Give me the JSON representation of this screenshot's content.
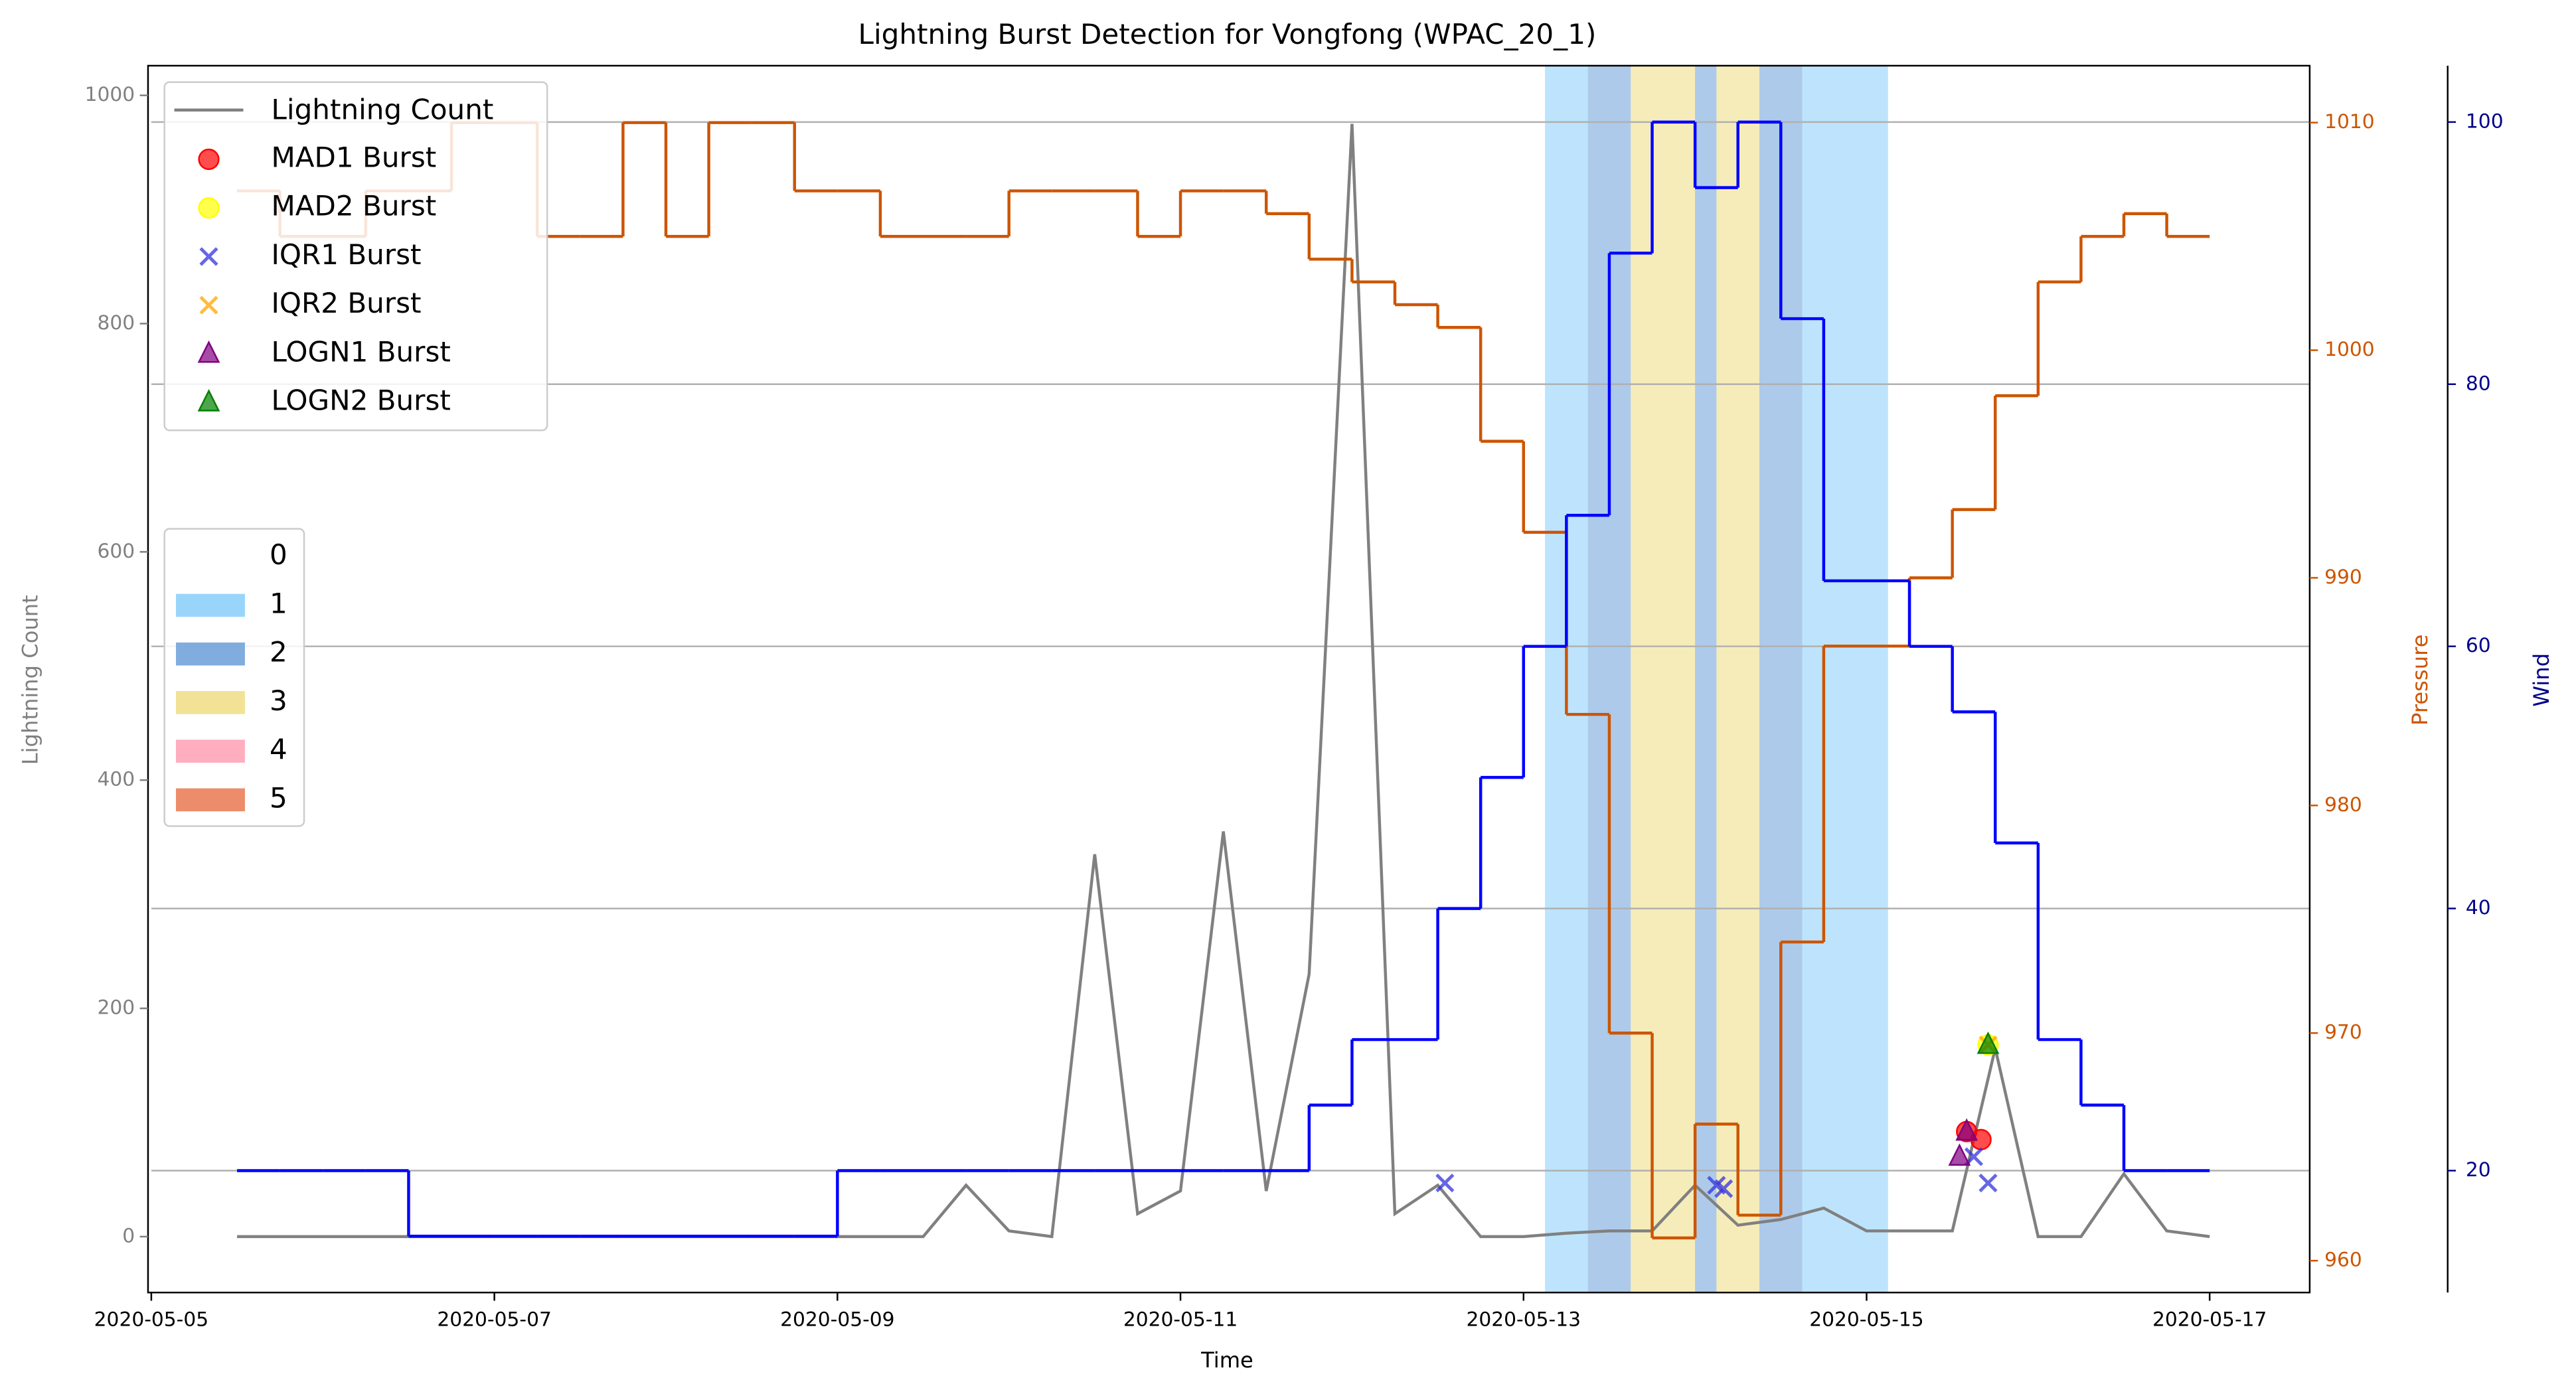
{
  "chart_data": {
    "type": "line",
    "title": "Lightning Burst Detection for Vongfong (WPAC_20_1)",
    "x_label": "Time",
    "y_label": "Lightning Count",
    "y2_label": "Pressure",
    "y3_label": "Wind",
    "x": [
      "2020-05-05 12:00",
      "2020-05-05 18:00",
      "2020-05-06 00:00",
      "2020-05-06 06:00",
      "2020-05-06 12:00",
      "2020-05-06 18:00",
      "2020-05-07 00:00",
      "2020-05-07 06:00",
      "2020-05-07 12:00",
      "2020-05-07 18:00",
      "2020-05-08 00:00",
      "2020-05-08 06:00",
      "2020-05-08 12:00",
      "2020-05-08 18:00",
      "2020-05-09 00:00",
      "2020-05-09 06:00",
      "2020-05-09 12:00",
      "2020-05-09 18:00",
      "2020-05-10 00:00",
      "2020-05-10 06:00",
      "2020-05-10 12:00",
      "2020-05-10 18:00",
      "2020-05-11 00:00",
      "2020-05-11 06:00",
      "2020-05-11 12:00",
      "2020-05-11 18:00",
      "2020-05-12 00:00",
      "2020-05-12 06:00",
      "2020-05-12 12:00",
      "2020-05-12 18:00",
      "2020-05-13 00:00",
      "2020-05-13 06:00",
      "2020-05-13 12:00",
      "2020-05-13 18:00",
      "2020-05-14 00:00",
      "2020-05-14 06:00",
      "2020-05-14 12:00",
      "2020-05-14 18:00",
      "2020-05-15 00:00",
      "2020-05-15 06:00",
      "2020-05-15 12:00",
      "2020-05-15 18:00",
      "2020-05-16 00:00",
      "2020-05-16 06:00",
      "2020-05-16 12:00",
      "2020-05-16 18:00",
      "2020-05-17 00:00"
    ],
    "xlim": [
      "2020-05-05 00:00",
      "2020-05-17 14:00"
    ],
    "xticks": [
      "2020-05-05",
      "2020-05-07",
      "2020-05-09",
      "2020-05-11",
      "2020-05-13",
      "2020-05-15",
      "2020-05-17"
    ],
    "ylim": [
      -49,
      1026
    ],
    "yticks": [
      0,
      200,
      400,
      600,
      800,
      1000
    ],
    "y2lim": [
      958.6,
      1012.5
    ],
    "y2ticks": [
      960,
      970,
      980,
      990,
      1000,
      1010
    ],
    "y3lim": [
      10.7,
      104.3
    ],
    "y3ticks": [
      20,
      40,
      60,
      80,
      100
    ],
    "grid": "y3",
    "series": [
      {
        "name": "Lightning Count",
        "color": "#808080",
        "axis": "y",
        "values": [
          0,
          0,
          0,
          0,
          0,
          0,
          0,
          0,
          0,
          0,
          0,
          0,
          0,
          0,
          0,
          0,
          0,
          45,
          5,
          0,
          335,
          20,
          40,
          355,
          40,
          230,
          975,
          20,
          45,
          0,
          0,
          3,
          5,
          5,
          45,
          10,
          15,
          25,
          5,
          5,
          5,
          165,
          0,
          0,
          55,
          5,
          0
        ]
      },
      {
        "color": "#cc5500",
        "axis": "y2",
        "drawstyle": "steps-post",
        "values": [
          1007,
          1005,
          1005,
          1007,
          1007,
          1010,
          1010,
          1005,
          1005,
          1010,
          1005,
          1010,
          1010,
          1007,
          1007,
          1005,
          1005,
          1005,
          1007,
          1007,
          1007,
          1005,
          1007,
          1007,
          1006,
          1004,
          1003,
          1002,
          1001,
          996,
          992,
          984,
          970,
          961,
          966,
          962,
          974,
          987,
          987,
          990,
          993,
          998,
          1003,
          1005,
          1006,
          1005,
          1005
        ]
      },
      {
        "color": "#0000ff",
        "axis": "y3",
        "drawstyle": "steps-post",
        "values": [
          20,
          20,
          20,
          20,
          15,
          15,
          15,
          15,
          15,
          15,
          15,
          15,
          15,
          15,
          20,
          20,
          20,
          20,
          20,
          20,
          20,
          20,
          20,
          20,
          20,
          25,
          30,
          30,
          40,
          50,
          60,
          70,
          90,
          100,
          95,
          100,
          85,
          65,
          65,
          60,
          55,
          45,
          30,
          25,
          20,
          20,
          20
        ]
      }
    ],
    "bursts": [
      {
        "name": "MAD1 Burst",
        "color": "#ff0000",
        "marker": "o",
        "x": [
          "2020-05-15 14:00",
          "2020-05-15 16:00"
        ],
        "values": [
          92,
          85
        ]
      },
      {
        "name": "MAD2 Burst",
        "color": "#ffff00",
        "marker": "o",
        "x": [
          "2020-05-15 17:00"
        ],
        "values": [
          168
        ]
      },
      {
        "name": "IQR1 Burst",
        "color": "#3333dd",
        "marker": "x",
        "x": [
          "2020-05-12 13:00",
          "2020-05-14 03:00",
          "2020-05-14 04:00",
          "2020-05-15 17:00",
          "2020-05-15 15:00"
        ],
        "values": [
          47,
          45,
          42,
          47,
          70
        ]
      },
      {
        "name": "IQR2 Burst",
        "color": "#ffa500",
        "marker": "x",
        "x": [
          "2020-05-15 17:00"
        ],
        "values": [
          168
        ]
      },
      {
        "name": "LOGN1 Burst",
        "color": "#800080",
        "marker": "^",
        "x": [
          "2020-05-15 13:00",
          "2020-05-15 14:00"
        ],
        "values": [
          70,
          92
        ]
      },
      {
        "name": "LOGN2 Burst",
        "color": "#008000",
        "marker": "^",
        "x": [
          "2020-05-15 17:00"
        ],
        "values": [
          168
        ]
      }
    ],
    "intensity_categories": {
      "labels": [
        "0",
        "1",
        "2",
        "3",
        "4",
        "5"
      ],
      "colors": [
        "#ffffff",
        "#87cefa",
        "#6a9fd8",
        "#eedd82",
        "#ffa0b4",
        "#ea7850"
      ]
    },
    "spans": {
      "x_start": [
        "2020-05-13 03:00",
        "2020-05-13 09:00",
        "2020-05-13 15:00",
        "2020-05-14 00:00",
        "2020-05-14 03:00",
        "2020-05-14 09:00",
        "2020-05-14 15:00"
      ],
      "x_end": [
        "2020-05-13 09:00",
        "2020-05-13 15:00",
        "2020-05-14 00:00",
        "2020-05-14 03:00",
        "2020-05-14 09:00",
        "2020-05-14 15:00",
        "2020-05-15 03:00"
      ],
      "category": [
        1,
        2,
        3,
        2,
        3,
        2,
        1
      ]
    }
  }
}
